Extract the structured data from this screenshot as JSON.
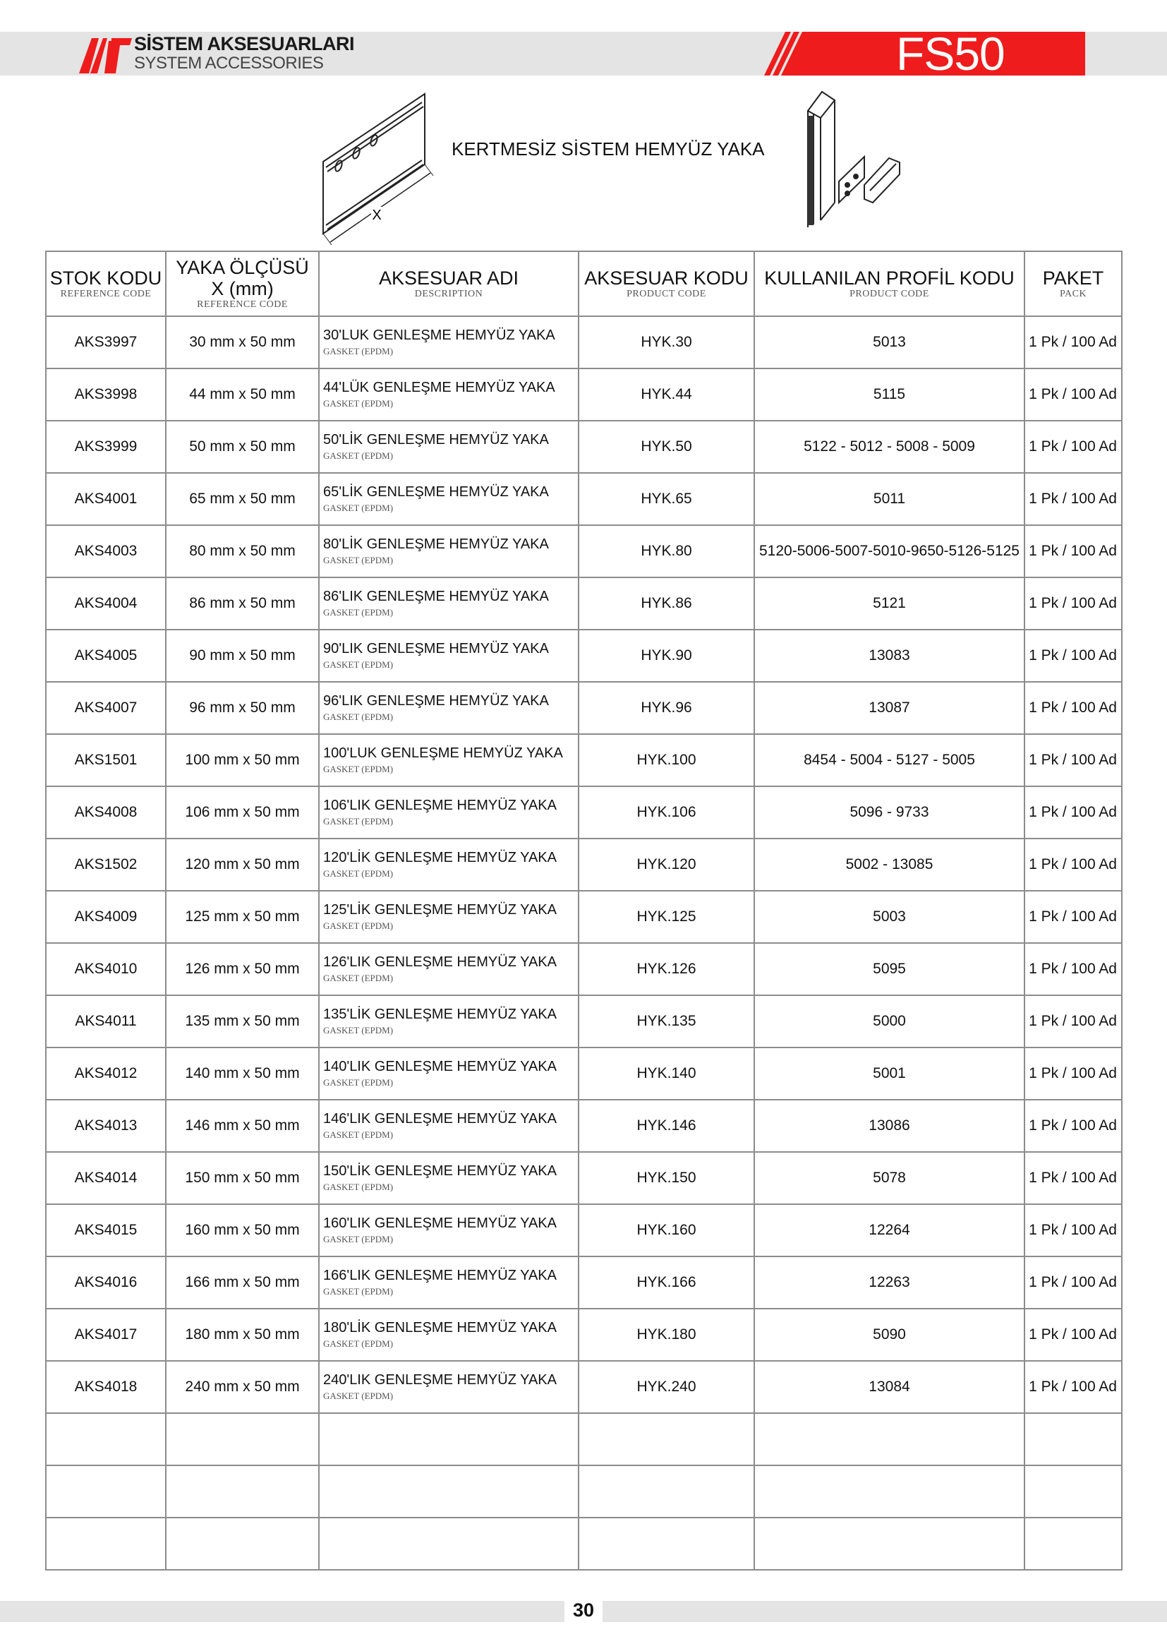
{
  "header": {
    "brand_title": "SİSTEM AKSESUARLARI",
    "brand_subtitle": "SYSTEM ACCESSORIES",
    "series": "FS50",
    "accent_color": "#ee1c1c",
    "band_color": "#e3e4e3"
  },
  "illustration": {
    "caption": "KERTMESİZ SİSTEM HEMYÜZ YAKA",
    "dimension_label": "X"
  },
  "table": {
    "columns": [
      {
        "title": "STOK KODU",
        "subtitle": "REFERENCE CODE"
      },
      {
        "title": "YAKA ÖLÇÜSÜ X (mm)",
        "subtitle": "REFERENCE CODE"
      },
      {
        "title": "AKSESUAR ADI",
        "subtitle": "DESCRIPTION"
      },
      {
        "title": "AKSESUAR KODU",
        "subtitle": "PRODUCT CODE"
      },
      {
        "title": "KULLANILAN PROFİL KODU",
        "subtitle": "PRODUCT CODE"
      },
      {
        "title": "PAKET",
        "subtitle": "PACK"
      }
    ],
    "rows": [
      {
        "stock": "AKS3997",
        "size": "30 mm x 50 mm",
        "name": "30'LUK GENLEŞME HEMYÜZ YAKA",
        "sub": "GASKET (EPDM)",
        "code": "HYK.30",
        "profile": "5013",
        "pack": "1 Pk / 100 Ad"
      },
      {
        "stock": "AKS3998",
        "size": "44 mm x 50 mm",
        "name": "44'LÜK GENLEŞME HEMYÜZ YAKA",
        "sub": "GASKET (EPDM)",
        "code": "HYK.44",
        "profile": "5115",
        "pack": "1 Pk / 100 Ad"
      },
      {
        "stock": "AKS3999",
        "size": "50 mm x 50 mm",
        "name": "50'LİK GENLEŞME HEMYÜZ YAKA",
        "sub": "GASKET (EPDM)",
        "code": "HYK.50",
        "profile": "5122 - 5012 - 5008 - 5009",
        "pack": "1 Pk / 100 Ad"
      },
      {
        "stock": "AKS4001",
        "size": "65 mm x 50 mm",
        "name": "65'LİK GENLEŞME HEMYÜZ YAKA",
        "sub": "GASKET (EPDM)",
        "code": "HYK.65",
        "profile": "5011",
        "pack": "1 Pk / 100 Ad"
      },
      {
        "stock": "AKS4003",
        "size": "80 mm x 50 mm",
        "name": "80'LİK GENLEŞME HEMYÜZ YAKA",
        "sub": "GASKET (EPDM)",
        "code": "HYK.80",
        "profile": "5120-5006-5007-5010-9650-5126-5125",
        "pack": "1 Pk / 100 Ad"
      },
      {
        "stock": "AKS4004",
        "size": "86 mm x 50 mm",
        "name": "86'LIK GENLEŞME HEMYÜZ YAKA",
        "sub": "GASKET (EPDM)",
        "code": "HYK.86",
        "profile": "5121",
        "pack": "1 Pk / 100 Ad"
      },
      {
        "stock": "AKS4005",
        "size": "90 mm x 50 mm",
        "name": "90'LIK GENLEŞME HEMYÜZ YAKA",
        "sub": "GASKET (EPDM)",
        "code": "HYK.90",
        "profile": "13083",
        "pack": "1 Pk / 100 Ad"
      },
      {
        "stock": "AKS4007",
        "size": "96 mm x 50 mm",
        "name": "96'LIK GENLEŞME HEMYÜZ YAKA",
        "sub": "GASKET (EPDM)",
        "code": "HYK.96",
        "profile": "13087",
        "pack": "1 Pk / 100 Ad"
      },
      {
        "stock": "AKS1501",
        "size": "100 mm x 50 mm",
        "name": "100'LUK GENLEŞME HEMYÜZ YAKA",
        "sub": "GASKET (EPDM)",
        "code": "HYK.100",
        "profile": "8454 - 5004 - 5127 - 5005",
        "pack": "1 Pk / 100 Ad"
      },
      {
        "stock": "AKS4008",
        "size": "106 mm x 50 mm",
        "name": "106'LIK GENLEŞME HEMYÜZ YAKA",
        "sub": "GASKET (EPDM)",
        "code": "HYK.106",
        "profile": "5096 - 9733",
        "pack": "1 Pk / 100 Ad"
      },
      {
        "stock": "AKS1502",
        "size": "120 mm x 50 mm",
        "name": "120'LİK GENLEŞME HEMYÜZ YAKA",
        "sub": "GASKET (EPDM)",
        "code": "HYK.120",
        "profile": "5002 - 13085",
        "pack": "1 Pk / 100 Ad"
      },
      {
        "stock": "AKS4009",
        "size": "125 mm x 50 mm",
        "name": "125'LİK GENLEŞME HEMYÜZ YAKA",
        "sub": "GASKET (EPDM)",
        "code": "HYK.125",
        "profile": "5003",
        "pack": "1 Pk / 100 Ad"
      },
      {
        "stock": "AKS4010",
        "size": "126 mm x 50 mm",
        "name": "126'LIK GENLEŞME HEMYÜZ YAKA",
        "sub": "GASKET (EPDM)",
        "code": "HYK.126",
        "profile": "5095",
        "pack": "1 Pk / 100 Ad"
      },
      {
        "stock": "AKS4011",
        "size": "135 mm x 50 mm",
        "name": "135'LİK GENLEŞME HEMYÜZ YAKA",
        "sub": "GASKET (EPDM)",
        "code": "HYK.135",
        "profile": "5000",
        "pack": "1 Pk / 100 Ad"
      },
      {
        "stock": "AKS4012",
        "size": "140 mm x 50 mm",
        "name": "140'LIK GENLEŞME HEMYÜZ YAKA",
        "sub": "GASKET (EPDM)",
        "code": "HYK.140",
        "profile": "5001",
        "pack": "1 Pk / 100 Ad"
      },
      {
        "stock": "AKS4013",
        "size": "146 mm x 50 mm",
        "name": "146'LIK GENLEŞME HEMYÜZ YAKA",
        "sub": "GASKET (EPDM)",
        "code": "HYK.146",
        "profile": "13086",
        "pack": "1 Pk / 100 Ad"
      },
      {
        "stock": "AKS4014",
        "size": "150 mm x 50 mm",
        "name": "150'LİK GENLEŞME HEMYÜZ YAKA",
        "sub": "GASKET (EPDM)",
        "code": "HYK.150",
        "profile": "5078",
        "pack": "1 Pk / 100 Ad"
      },
      {
        "stock": "AKS4015",
        "size": "160 mm x 50 mm",
        "name": "160'LIK GENLEŞME HEMYÜZ YAKA",
        "sub": "GASKET (EPDM)",
        "code": "HYK.160",
        "profile": "12264",
        "pack": "1 Pk / 100 Ad"
      },
      {
        "stock": "AKS4016",
        "size": "166 mm x 50 mm",
        "name": "166'LIK GENLEŞME HEMYÜZ YAKA",
        "sub": "GASKET (EPDM)",
        "code": "HYK.166",
        "profile": "12263",
        "pack": "1 Pk / 100 Ad"
      },
      {
        "stock": "AKS4017",
        "size": "180 mm x 50 mm",
        "name": "180'LİK GENLEŞME HEMYÜZ YAKA",
        "sub": "GASKET (EPDM)",
        "code": "HYK.180",
        "profile": "5090",
        "pack": "1 Pk / 100 Ad"
      },
      {
        "stock": "AKS4018",
        "size": "240 mm x 50 mm",
        "name": "240'LIK GENLEŞME HEMYÜZ YAKA",
        "sub": "GASKET (EPDM)",
        "code": "HYK.240",
        "profile": "13084",
        "pack": "1 Pk / 100 Ad"
      }
    ],
    "empty_rows": 3
  },
  "footer": {
    "page_number": "30"
  }
}
